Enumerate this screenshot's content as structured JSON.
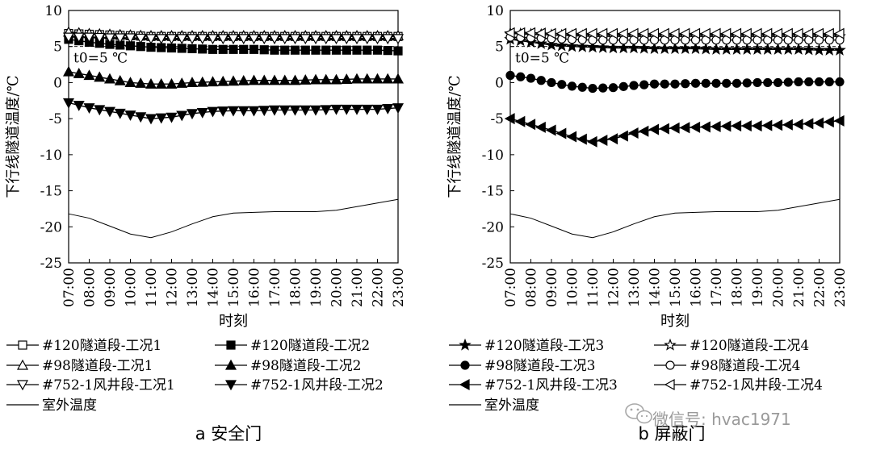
{
  "chart_data": [
    {
      "type": "line",
      "caption": "a  安全门",
      "xlabel": "时刻",
      "ylabel": "下行线隧道温度/℃",
      "x": [
        "07:00",
        "08:00",
        "09:00",
        "10:00",
        "11:00",
        "12:00",
        "13:00",
        "14:00",
        "15:00",
        "16:00",
        "17:00",
        "18:00",
        "19:00",
        "20:00",
        "21:00",
        "22:00",
        "23:00"
      ],
      "ylim": [
        -25,
        10
      ],
      "yticks": [
        10,
        5,
        0,
        -5,
        -10,
        -15,
        -20,
        -25
      ],
      "annotation": {
        "text": "t0=5 ℃",
        "y": 5
      },
      "series": [
        {
          "name": "#120隧道段-工况1",
          "marker": "square-open",
          "values": [
            6.8,
            6.7,
            6.6,
            6.5,
            6.4,
            6.4,
            6.4,
            6.4,
            6.4,
            6.4,
            6.4,
            6.4,
            6.4,
            6.4,
            6.4,
            6.4,
            6.4
          ]
        },
        {
          "name": "#120隧道段-工况2",
          "marker": "square-filled",
          "values": [
            6.0,
            5.6,
            5.3,
            5.1,
            4.9,
            4.8,
            4.7,
            4.6,
            4.6,
            4.6,
            4.5,
            4.5,
            4.5,
            4.5,
            4.5,
            4.5,
            4.4
          ]
        },
        {
          "name": "#98隧道段-工况1",
          "marker": "triangle-up-open",
          "values": [
            7.0,
            6.8,
            6.7,
            6.6,
            6.5,
            6.5,
            6.5,
            6.5,
            6.5,
            6.5,
            6.5,
            6.5,
            6.5,
            6.5,
            6.5,
            6.5,
            6.5
          ]
        },
        {
          "name": "#98隧道段-工况2",
          "marker": "triangle-up-filled",
          "values": [
            1.5,
            1.0,
            0.5,
            0.0,
            -0.2,
            -0.2,
            0.0,
            0.1,
            0.2,
            0.3,
            0.3,
            0.3,
            0.4,
            0.4,
            0.5,
            0.5,
            0.5
          ]
        },
        {
          "name": "#752-1风井段-工况1",
          "marker": "triangle-down-open",
          "values": [
            6.3,
            6.3,
            6.2,
            6.2,
            6.1,
            6.1,
            6.1,
            6.1,
            6.1,
            6.1,
            6.1,
            6.1,
            6.1,
            6.1,
            6.1,
            6.1,
            6.1
          ]
        },
        {
          "name": "#752-1风井段-工况2",
          "marker": "triangle-down-filled",
          "values": [
            -2.8,
            -3.5,
            -4.0,
            -4.5,
            -5.0,
            -4.8,
            -4.3,
            -4.0,
            -3.9,
            -3.9,
            -3.8,
            -3.8,
            -3.8,
            -3.7,
            -3.7,
            -3.7,
            -3.5
          ]
        },
        {
          "name": "室外温度",
          "marker": "none",
          "values": [
            -18.2,
            -18.8,
            -19.9,
            -21.0,
            -21.5,
            -20.7,
            -19.6,
            -18.6,
            -18.1,
            -18.0,
            -17.9,
            -17.9,
            -17.9,
            -17.7,
            -17.2,
            -16.7,
            -16.2
          ]
        }
      ]
    },
    {
      "type": "line",
      "caption": "b  屏蔽门",
      "xlabel": "时刻",
      "ylabel": "下行线隧道温度/℃",
      "x": [
        "07:00",
        "08:00",
        "09:00",
        "10:00",
        "11:00",
        "12:00",
        "13:00",
        "14:00",
        "15:00",
        "16:00",
        "17:00",
        "18:00",
        "19:00",
        "20:00",
        "21:00",
        "22:00",
        "23:00"
      ],
      "ylim": [
        -25,
        10
      ],
      "yticks": [
        10,
        5,
        0,
        -5,
        -10,
        -15,
        -20,
        -25
      ],
      "annotation": {
        "text": "t0=5 ℃",
        "y": 5
      },
      "series": [
        {
          "name": "#120隧道段-工况3",
          "marker": "star-filled",
          "values": [
            6.0,
            5.6,
            5.2,
            5.0,
            4.9,
            4.8,
            4.8,
            4.7,
            4.7,
            4.7,
            4.6,
            4.6,
            4.6,
            4.6,
            4.6,
            4.5,
            4.5
          ]
        },
        {
          "name": "#120隧道段-工况4",
          "marker": "star-open",
          "values": [
            6.8,
            6.7,
            6.6,
            6.5,
            6.4,
            6.4,
            6.4,
            6.4,
            6.4,
            6.4,
            6.4,
            6.4,
            6.4,
            6.4,
            6.4,
            6.4,
            6.4
          ]
        },
        {
          "name": "#98隧道段-工况3",
          "marker": "circle-filled",
          "values": [
            1.0,
            0.6,
            0.0,
            -0.5,
            -0.8,
            -0.7,
            -0.4,
            -0.2,
            -0.2,
            -0.1,
            -0.1,
            -0.1,
            0.0,
            0.0,
            0.1,
            0.1,
            0.1
          ]
        },
        {
          "name": "#98隧道段-工况4",
          "marker": "circle-open",
          "values": [
            6.3,
            6.2,
            6.1,
            6.0,
            5.9,
            5.9,
            5.9,
            5.9,
            5.9,
            5.9,
            5.9,
            5.9,
            5.9,
            5.9,
            5.9,
            5.9,
            5.9
          ]
        },
        {
          "name": "#752-1风井段-工况3",
          "marker": "triangle-left-filled",
          "values": [
            -5.0,
            -5.8,
            -6.6,
            -7.5,
            -8.2,
            -7.8,
            -7.0,
            -6.5,
            -6.3,
            -6.2,
            -6.1,
            -6.0,
            -6.0,
            -5.9,
            -5.8,
            -5.6,
            -5.3
          ]
        },
        {
          "name": "#752-1风井段-工况4",
          "marker": "triangle-left-open",
          "values": [
            6.9,
            6.9,
            6.8,
            6.8,
            6.8,
            6.8,
            6.8,
            6.8,
            6.8,
            6.8,
            6.8,
            6.8,
            6.8,
            6.8,
            6.8,
            6.8,
            6.8
          ]
        },
        {
          "name": "室外温度",
          "marker": "none",
          "values": [
            -18.2,
            -18.8,
            -19.9,
            -21.0,
            -21.5,
            -20.7,
            -19.6,
            -18.6,
            -18.1,
            -18.0,
            -17.9,
            -17.9,
            -17.9,
            -17.7,
            -17.2,
            -16.7,
            -16.2
          ]
        }
      ]
    }
  ],
  "watermark": "微信号: hvac1971"
}
